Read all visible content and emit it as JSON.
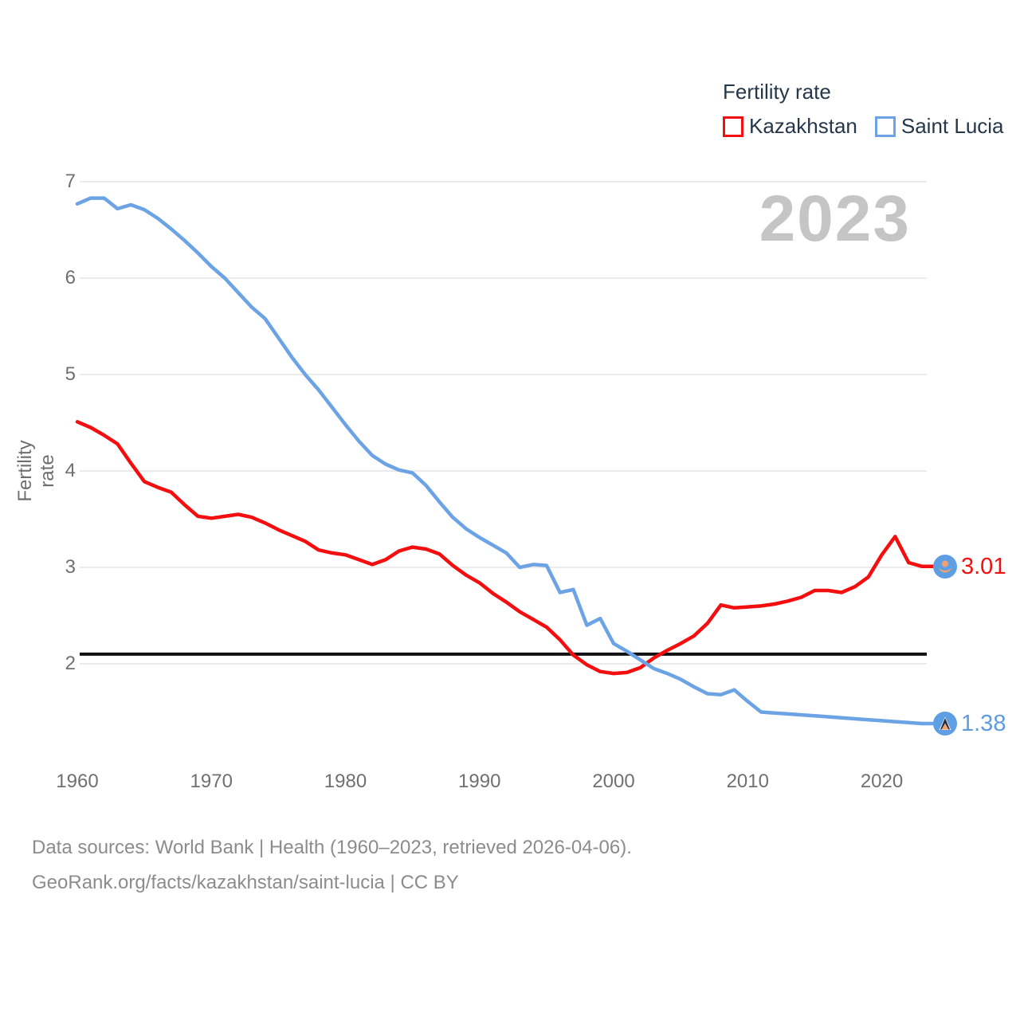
{
  "watermark": {
    "year": "2023"
  },
  "legend": {
    "title": "Fertility rate",
    "items": [
      {
        "label": "Kazakhstan",
        "color": "#f30f0f"
      },
      {
        "label": "Saint Lucia",
        "color": "#6ba3e5"
      }
    ]
  },
  "footer": {
    "line1": "Data sources: World Bank | Health (1960–2023, retrieved 2026-04-06).",
    "line2": "GeoRank.org/facts/kazakhstan/saint-lucia | CC BY"
  },
  "chart_data": {
    "type": "line",
    "title": "Fertility rate",
    "y_label": "Fertility rate",
    "x_label": "",
    "xlim": [
      1960,
      2023
    ],
    "ylim": [
      1.3,
      7.05
    ],
    "grid": "horizontal",
    "legend_position": "top-right",
    "y_ticks": [
      7,
      6,
      5,
      4,
      3,
      2
    ],
    "x_ticks": [
      1960,
      1970,
      1980,
      1990,
      2000,
      2010,
      2020
    ],
    "reference_line": 2.1,
    "x": [
      1960,
      1961,
      1962,
      1963,
      1964,
      1965,
      1966,
      1967,
      1968,
      1969,
      1970,
      1971,
      1972,
      1973,
      1974,
      1975,
      1976,
      1977,
      1978,
      1979,
      1980,
      1981,
      1982,
      1983,
      1984,
      1985,
      1986,
      1987,
      1988,
      1989,
      1990,
      1991,
      1992,
      1993,
      1994,
      1995,
      1996,
      1997,
      1998,
      1999,
      2000,
      2001,
      2002,
      2003,
      2004,
      2005,
      2006,
      2007,
      2008,
      2009,
      2010,
      2011,
      2012,
      2013,
      2014,
      2015,
      2016,
      2017,
      2018,
      2019,
      2020,
      2021,
      2022,
      2023
    ],
    "series": [
      {
        "name": "Kazakhstan",
        "color": "#f30f0f",
        "end_label": "3.01",
        "flag_icon": "kazakhstan-flag-icon",
        "values": [
          4.51,
          4.45,
          4.37,
          4.28,
          4.08,
          3.89,
          3.83,
          3.78,
          3.65,
          3.53,
          3.51,
          3.53,
          3.55,
          3.52,
          3.46,
          3.39,
          3.33,
          3.27,
          3.18,
          3.15,
          3.13,
          3.08,
          3.03,
          3.08,
          3.17,
          3.21,
          3.19,
          3.14,
          3.02,
          2.92,
          2.84,
          2.73,
          2.64,
          2.54,
          2.46,
          2.38,
          2.25,
          2.09,
          1.99,
          1.92,
          1.9,
          1.91,
          1.96,
          2.06,
          2.14,
          2.21,
          2.29,
          2.42,
          2.61,
          2.58,
          2.59,
          2.6,
          2.62,
          2.65,
          2.69,
          2.76,
          2.76,
          2.74,
          2.8,
          2.9,
          3.13,
          3.32,
          3.05,
          3.01
        ]
      },
      {
        "name": "Saint Lucia",
        "color": "#6ba3e5",
        "end_label": "1.38",
        "flag_icon": "saint-lucia-flag-icon",
        "values": [
          6.77,
          6.83,
          6.83,
          6.72,
          6.76,
          6.71,
          6.62,
          6.51,
          6.39,
          6.26,
          6.12,
          6.0,
          5.85,
          5.7,
          5.58,
          5.38,
          5.18,
          5.0,
          4.84,
          4.66,
          4.48,
          4.31,
          4.16,
          4.07,
          4.01,
          3.98,
          3.85,
          3.68,
          3.52,
          3.4,
          3.31,
          3.23,
          3.15,
          3.0,
          3.03,
          3.02,
          2.74,
          2.77,
          2.4,
          2.47,
          2.21,
          2.13,
          2.04,
          1.95,
          1.9,
          1.84,
          1.76,
          1.69,
          1.68,
          1.73,
          1.61,
          1.5,
          1.49,
          1.48,
          1.47,
          1.46,
          1.45,
          1.44,
          1.43,
          1.42,
          1.41,
          1.4,
          1.39,
          1.38
        ]
      }
    ]
  }
}
